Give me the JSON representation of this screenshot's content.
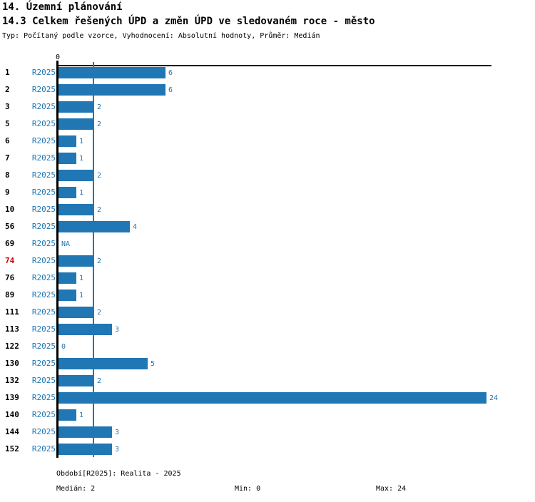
{
  "header": {
    "title1": "14. Územní plánování",
    "title2": "14.3 Celkem řešených ÚPD a změn ÚPD ve sledovaném roce - město",
    "subtitle": "Typ: Počítaný podle vzorce, Vyhodnocení: Absolutní hodnoty, Průměr: Medián"
  },
  "chart_data": {
    "type": "bar",
    "orientation": "horizontal",
    "title": "14.3 Celkem řešených ÚPD a změn ÚPD ve sledovaném roce - město",
    "series_label": "R2025",
    "axis_origin_label": "0",
    "xlim": [
      0,
      24
    ],
    "grid": false,
    "categories": [
      "1",
      "2",
      "3",
      "5",
      "6",
      "7",
      "8",
      "9",
      "10",
      "56",
      "69",
      "74",
      "76",
      "89",
      "111",
      "113",
      "122",
      "130",
      "132",
      "139",
      "140",
      "144",
      "152"
    ],
    "values": [
      6,
      6,
      2,
      2,
      1,
      1,
      2,
      1,
      2,
      4,
      null,
      2,
      1,
      1,
      2,
      3,
      0,
      5,
      2,
      24,
      1,
      3,
      3
    ],
    "value_labels": [
      "6",
      "6",
      "2",
      "2",
      "1",
      "1",
      "2",
      "1",
      "2",
      "4",
      "NA",
      "2",
      "1",
      "1",
      "2",
      "3",
      "0",
      "5",
      "2",
      "24",
      "1",
      "3",
      "3"
    ],
    "highlighted_category": "74",
    "median_value": 2,
    "colors": {
      "bar": "#2077b4",
      "series_label": "#2077b4",
      "value_label": "#2077b4",
      "median_line": "#2077b4",
      "category_label": "#000000",
      "highlighted_category_label": "#cc0000",
      "axis": "#000000"
    }
  },
  "footer": {
    "period": "Období[R2025]: Realita - 2025",
    "median": "Medián: 2",
    "min": "Min: 0",
    "max": "Max: 24"
  }
}
